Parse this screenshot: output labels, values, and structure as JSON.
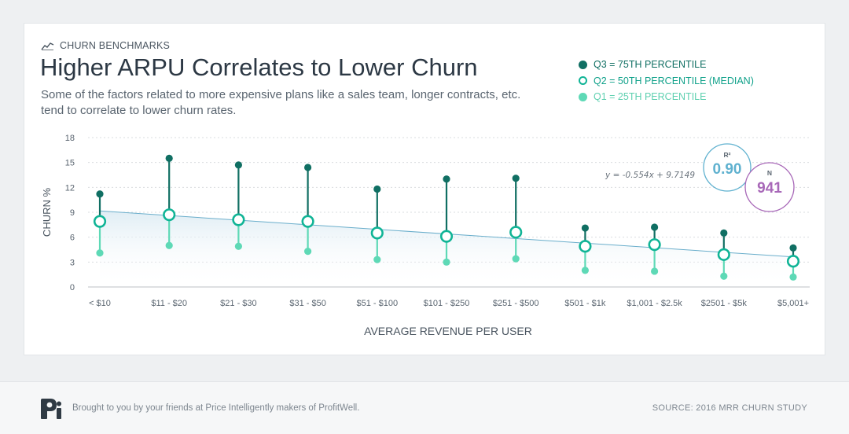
{
  "header": {
    "kicker": "CHURN BENCHMARKS",
    "kicker_icon": "line-chart-icon",
    "title": "Higher ARPU Correlates to Lower Churn",
    "subtitle_line1": "Some of the factors related to more expensive plans like a sales team, longer contracts, etc.",
    "subtitle_line2": "tend to correlate to lower churn rates."
  },
  "legend": [
    {
      "key": "q3",
      "label": "Q3 = 75TH PERCENTILE"
    },
    {
      "key": "q2",
      "label": "Q2 = 50TH PERCENTILE (MEDIAN)"
    },
    {
      "key": "q1",
      "label": "Q1 = 25TH PERCENTILE"
    }
  ],
  "colors": {
    "q3": "#106f63",
    "q2": "#10b496",
    "q1": "#5ed9b6",
    "trend": "#6aaecb",
    "r2": "#5fb1cf",
    "n": "#a868b8",
    "axis": "#c9cdd1",
    "grid": "#d9dcdf"
  },
  "stats": {
    "equation": "y = -0.554x + 9.7149",
    "r2_label": "R²",
    "r2_value": "0.90",
    "n_label": "N",
    "n_value": "941"
  },
  "chart_data": {
    "type": "scatter",
    "xlabel": "AVERAGE REVENUE PER USER",
    "ylabel": "CHURN %",
    "ylim": [
      0,
      18
    ],
    "yticks": [
      0,
      3,
      6,
      9,
      12,
      15,
      18
    ],
    "grid": "horizontal-dashed",
    "legend_position": "top-right",
    "categories": [
      "< $10",
      "$11 - $20",
      "$21 - $30",
      "$31 - $50",
      "$51 - $100",
      "$101 - $250",
      "$251 - $500",
      "$501 - $1k",
      "$1,001 - $2.5k",
      "$2501 - $5k",
      "$5,001+"
    ],
    "series": [
      {
        "name": "Q3 = 75TH PERCENTILE",
        "key": "q3",
        "values": [
          11.2,
          15.5,
          14.7,
          14.4,
          11.8,
          13.0,
          13.1,
          7.1,
          7.2,
          6.5,
          4.7
        ]
      },
      {
        "name": "Q2 = 50TH PERCENTILE (MEDIAN)",
        "key": "q2",
        "values": [
          7.9,
          8.7,
          8.1,
          7.9,
          6.5,
          6.1,
          6.6,
          4.9,
          5.1,
          3.9,
          3.1
        ]
      },
      {
        "name": "Q1 = 25TH PERCENTILE",
        "key": "q1",
        "values": [
          4.1,
          5.0,
          4.9,
          4.3,
          3.3,
          3.0,
          3.4,
          2.0,
          1.9,
          1.3,
          1.2
        ]
      }
    ],
    "trendline": {
      "slope": -0.554,
      "intercept": 9.7149,
      "equation": "y = -0.554x + 9.7149"
    },
    "r2": 0.9,
    "n": 941
  },
  "footer": {
    "logo_icon": "price-intelligently-logo-icon",
    "credit": "Brought to you by your friends at Price Intelligently makers of ProfitWell.",
    "source": "SOURCE: 2016 MRR CHURN STUDY"
  }
}
